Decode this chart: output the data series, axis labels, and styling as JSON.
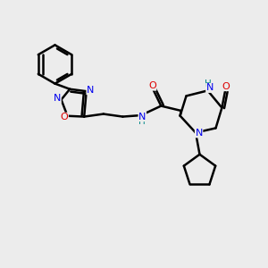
{
  "background_color": "#ececec",
  "bond_color": "#000000",
  "bond_width": 1.8,
  "atom_colors": {
    "N": "#0000ee",
    "O": "#dd0000",
    "H": "#008888",
    "C": "#000000"
  },
  "font_size": 8.0,
  "fig_size": [
    3.0,
    3.0
  ],
  "dpi": 100
}
